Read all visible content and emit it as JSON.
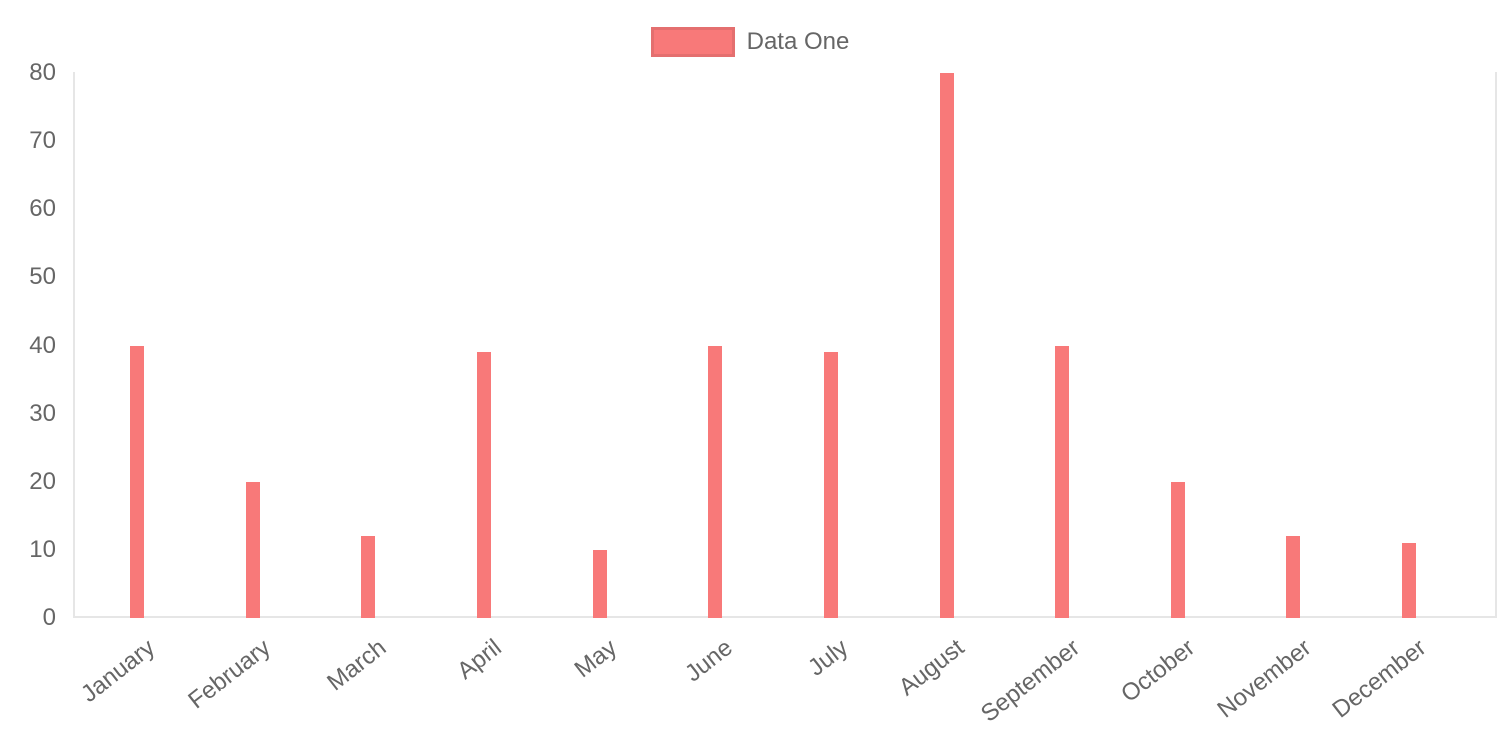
{
  "chart_data": {
    "type": "bar",
    "title": "",
    "categories": [
      "January",
      "February",
      "March",
      "April",
      "May",
      "June",
      "July",
      "August",
      "September",
      "October",
      "November",
      "December"
    ],
    "series": [
      {
        "name": "Data One",
        "color": "#f87979",
        "values": [
          40,
          20,
          12,
          39,
          10,
          40,
          39,
          80,
          40,
          20,
          12,
          11
        ]
      }
    ],
    "xlabel": "",
    "ylabel": "",
    "ylim": [
      0,
      80
    ],
    "yticks": [
      0,
      10,
      20,
      30,
      40,
      50,
      60,
      70,
      80
    ],
    "grid": false,
    "legend_position": "top",
    "x_tick_rotation_deg": -38,
    "axis_line_color": "#e6e6e6",
    "tick_label_color": "#666666",
    "background_color": "#ffffff"
  }
}
